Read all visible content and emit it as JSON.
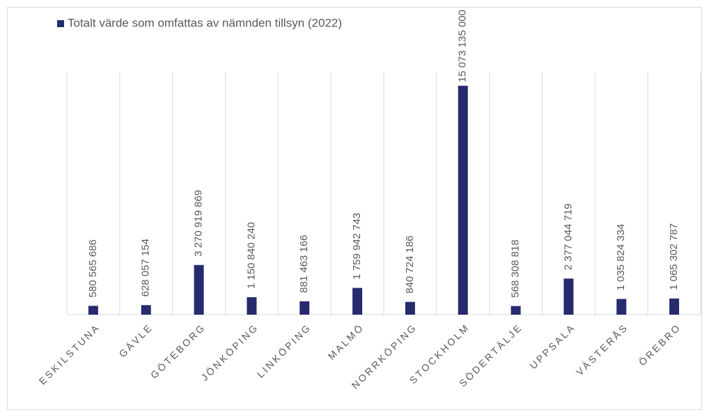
{
  "chart_data": {
    "type": "bar",
    "series": [
      {
        "name": "Totalt värde som omfattas av nämnden tillsyn (2022)",
        "color": "#262b6e",
        "values": [
          580565686,
          628057154,
          3270919869,
          1150840240,
          881463166,
          1759942743,
          840724186,
          15073135000,
          568308818,
          2377044719,
          1035824334,
          1065302787
        ],
        "value_labels": [
          "580 565 686",
          "628 057 154",
          "3 270 919 869",
          "1 150 840 240",
          "881 463 166",
          "1 759 942 743",
          "840 724 186",
          "15 073 135 000",
          "568 308 818",
          "2 377 044 719",
          "1 035 824 334",
          "1 065 302 787"
        ]
      }
    ],
    "categories": [
      "ESKILSTUNA",
      "GÄVLE",
      "GÖTEBORG",
      "JÖNKÖPING",
      "LINKÖPING",
      "MALMÖ",
      "NORRKÖPING",
      "STOCKHOLM",
      "SÖDERTÄLJE",
      "UPPSALA",
      "VÄSTERÅS",
      "ÖREBRO"
    ],
    "ylim": [
      0,
      16000000000
    ],
    "legend": "top-left"
  }
}
